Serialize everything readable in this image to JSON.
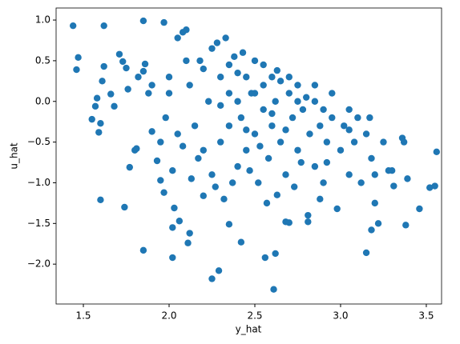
{
  "chart_data": {
    "type": "scatter",
    "xlabel": "y_hat",
    "ylabel": "u_hat",
    "color": "#1f77b4",
    "xlim": [
      1.341,
      3.589
    ],
    "ylim": [
      -2.49,
      1.148
    ],
    "xticks": [
      1.5,
      {
        "value": 2.0,
        "label": "2.0"
      },
      2.5,
      {
        "value": 3.0,
        "label": "3.0"
      },
      3.5
    ],
    "yticks": [
      {
        "value": 1.0,
        "label": "1.0"
      },
      0.5,
      {
        "value": 0.0,
        "label": "0.0"
      },
      {
        "value": -0.5,
        "label": "−0.5"
      },
      {
        "value": -1.0,
        "label": "−1.0"
      },
      {
        "value": -1.5,
        "label": "−1.5"
      },
      {
        "value": -2.0,
        "label": "−2.0"
      }
    ],
    "x": [
      1.44,
      1.46,
      1.47,
      1.62,
      1.85,
      1.97,
      1.6,
      1.74,
      1.85,
      2.02,
      2.25,
      2.29,
      2.61,
      2.56,
      2.62,
      2.42,
      2.11,
      2.12,
      2.06,
      2.02,
      3.15,
      3.18,
      3.38,
      3.46,
      3.52,
      3.55,
      3.56,
      3.36,
      3.37,
      3.39,
      3.3,
      3.31,
      3.22,
      3.2,
      2.81,
      2.81,
      2.68,
      2.7,
      2.35,
      2.03,
      1.55,
      1.57,
      1.58,
      1.59,
      1.6,
      1.61,
      1.62,
      1.66,
      1.68,
      1.71,
      1.73,
      1.75,
      1.76,
      1.77,
      1.8,
      1.81,
      1.85,
      1.86,
      1.88,
      1.9,
      1.93,
      1.95,
      1.97,
      1.98,
      2.0,
      2.05,
      2.08,
      2.1,
      2.12,
      2.15,
      2.17,
      2.2,
      2.2,
      2.23,
      2.25,
      2.27,
      2.3,
      2.3,
      2.32,
      2.35,
      2.35,
      2.38,
      2.4,
      2.4,
      2.42,
      2.45,
      2.45,
      2.48,
      2.5,
      2.5,
      2.52,
      2.55,
      2.55,
      2.58,
      2.6,
      2.6,
      2.62,
      2.65,
      2.65,
      2.68,
      2.7,
      2.72,
      2.75,
      2.75,
      2.78,
      2.8,
      2.82,
      2.85,
      2.85,
      2.88,
      2.9,
      2.9,
      2.92,
      2.95,
      2.98,
      3.0,
      3.02,
      3.05,
      3.05,
      3.08,
      3.1,
      3.12,
      3.15,
      3.17,
      3.18,
      3.2,
      3.25,
      3.28,
      2.25,
      2.33,
      2.28,
      2.18,
      2.1,
      2.0,
      2.05,
      2.08,
      2.2,
      2.43,
      2.55,
      2.63,
      2.7,
      2.85,
      2.95,
      1.82,
      1.9,
      1.95,
      2.02,
      2.13,
      2.47,
      2.57,
      2.37,
      2.3,
      2.4,
      2.5,
      2.6,
      2.68,
      2.75,
      2.45,
      2.53,
      2.35,
      2.77,
      2.92,
      3.05,
      2.88,
      2.63,
      2.73
    ],
    "y": [
      0.93,
      0.39,
      0.54,
      0.93,
      0.99,
      0.97,
      -1.21,
      -1.3,
      -1.83,
      -1.92,
      -2.18,
      -2.08,
      -2.31,
      -1.92,
      -1.87,
      -1.73,
      -1.74,
      -1.62,
      -1.47,
      -1.55,
      -1.86,
      -1.58,
      -1.52,
      -1.32,
      -1.06,
      -1.04,
      -0.62,
      -0.45,
      -0.5,
      -0.95,
      -0.85,
      -1.04,
      -1.5,
      -1.25,
      -1.4,
      -1.48,
      -1.48,
      -1.49,
      -1.51,
      -1.31,
      -0.22,
      -0.06,
      0.04,
      -0.38,
      -0.27,
      0.25,
      0.43,
      0.09,
      -0.06,
      0.58,
      0.49,
      0.41,
      0.15,
      -0.81,
      -0.6,
      -0.58,
      0.37,
      0.46,
      0.1,
      -0.37,
      -0.73,
      -0.97,
      -1.12,
      -0.2,
      0.3,
      0.78,
      0.85,
      0.88,
      0.2,
      -0.3,
      -0.7,
      0.4,
      -1.16,
      0.0,
      -0.9,
      -1.05,
      0.3,
      -0.5,
      -1.2,
      0.1,
      -0.3,
      0.55,
      -0.8,
      0.0,
      -0.2,
      0.3,
      -0.6,
      0.1,
      -0.4,
      0.5,
      -1.0,
      0.2,
      -0.1,
      -0.7,
      0.3,
      -0.3,
      0.0,
      -0.5,
      0.25,
      -0.9,
      0.1,
      -0.2,
      0.2,
      -0.6,
      -0.1,
      0.05,
      -0.4,
      -0.8,
      0.0,
      -0.3,
      -1.0,
      -0.1,
      -0.5,
      -0.2,
      -1.32,
      -0.6,
      -0.3,
      -0.1,
      -0.9,
      -0.5,
      -0.2,
      -1.0,
      -0.4,
      -0.2,
      -0.7,
      -0.9,
      -0.5,
      -0.85,
      0.65,
      0.78,
      0.72,
      0.5,
      0.5,
      0.1,
      -0.4,
      -0.55,
      -0.6,
      0.6,
      0.45,
      0.38,
      0.3,
      0.2,
      0.1,
      0.3,
      0.2,
      -0.5,
      -0.85,
      -0.95,
      -0.85,
      -1.25,
      -1.0,
      -0.05,
      0.35,
      0.1,
      -0.15,
      -0.35,
      0.0,
      -0.35,
      -0.55,
      0.45,
      -0.75,
      -0.75,
      -0.35,
      -1.2,
      -1.15,
      -1.05
    ]
  }
}
